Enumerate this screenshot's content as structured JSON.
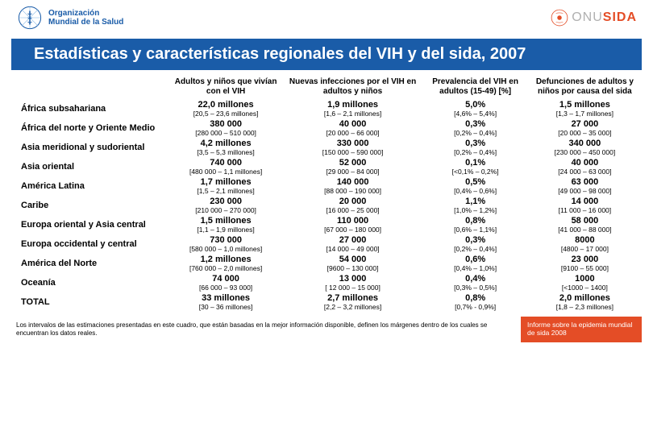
{
  "header": {
    "who_line1": "Organización",
    "who_line2": "Mundial de la Salud",
    "unaids_prefix": "ONU",
    "unaids_suffix": "SIDA"
  },
  "title": "Estadísticas y características regionales del VIH y del sida, 2007",
  "columns": [
    "Adultos y niños que vivían con el VIH",
    "Nuevas infecciones por el VIH en adultos y niños",
    "Prevalencia del VIH en adultos (15-49) [%]",
    "Defunciones de adultos y niños por causa del sida"
  ],
  "rows": [
    {
      "region": "África subsahariana",
      "c1": {
        "v": "22,0 millones",
        "r": "[20,5 – 23,6 millones]"
      },
      "c2": {
        "v": "1,9 millones",
        "r": "[1,6 – 2,1 millones]"
      },
      "c3": {
        "v": "5,0%",
        "r": "[4,6% – 5,4%]"
      },
      "c4": {
        "v": "1,5 millones",
        "r": "[1,3 – 1,7 millones]"
      }
    },
    {
      "region": "África del norte y Oriente Medio",
      "c1": {
        "v": "380 000",
        "r": "[280 000 – 510 000]"
      },
      "c2": {
        "v": "40 000",
        "r": "[20 000 – 66 000]"
      },
      "c3": {
        "v": "0,3%",
        "r": "[0,2% – 0,4%]"
      },
      "c4": {
        "v": "27 000",
        "r": "[20 000 – 35 000]"
      }
    },
    {
      "region": "Asia meridional y sudoriental",
      "c1": {
        "v": "4,2 millones",
        "r": "[3,5 – 5,3 millones]"
      },
      "c2": {
        "v": "330 000",
        "r": "[150 000 – 590 000]"
      },
      "c3": {
        "v": "0,3%",
        "r": "[0,2% – 0,4%]"
      },
      "c4": {
        "v": "340 000",
        "r": "[230 000 – 450 000]"
      }
    },
    {
      "region": "Asia oriental",
      "c1": {
        "v": "740 000",
        "r": "[480 000 – 1,1 millones]"
      },
      "c2": {
        "v": "52 000",
        "r": "[29 000 – 84 000]"
      },
      "c3": {
        "v": "0,1%",
        "r": "[<0,1% – 0,2%]"
      },
      "c4": {
        "v": "40 000",
        "r": "[24 000 – 63 000]"
      }
    },
    {
      "region": "América Latina",
      "c1": {
        "v": "1,7 millones",
        "r": "[1,5 – 2,1 millones]"
      },
      "c2": {
        "v": "140 000",
        "r": "[88 000 – 190 000]"
      },
      "c3": {
        "v": "0,5%",
        "r": "[0,4% – 0,6%]"
      },
      "c4": {
        "v": "63 000",
        "r": "[49 000 – 98 000]"
      }
    },
    {
      "region": "Caribe",
      "c1": {
        "v": "230 000",
        "r": "[210 000 – 270 000]"
      },
      "c2": {
        "v": "20 000",
        "r": "[16 000 – 25 000]"
      },
      "c3": {
        "v": "1,1%",
        "r": "[1,0% – 1,2%]"
      },
      "c4": {
        "v": "14 000",
        "r": "[11 000 – 16 000]"
      }
    },
    {
      "region": "Europa oriental y Asia central",
      "c1": {
        "v": "1,5 millones",
        "r": "[1,1 – 1,9 millones]"
      },
      "c2": {
        "v": "110 000",
        "r": "[67 000 – 180 000]"
      },
      "c3": {
        "v": "0,8%",
        "r": "[0,6% – 1,1%]"
      },
      "c4": {
        "v": "58 000",
        "r": "[41 000 – 88 000]"
      }
    },
    {
      "region": "Europa occidental y central",
      "c1": {
        "v": "730 000",
        "r": "[580 000 – 1,0 millones]"
      },
      "c2": {
        "v": "27 000",
        "r": "[14 000 – 49 000]"
      },
      "c3": {
        "v": "0,3%",
        "r": "[0,2% – 0,4%]"
      },
      "c4": {
        "v": "8000",
        "r": "[4800 – 17 000]"
      }
    },
    {
      "region": "América del Norte",
      "c1": {
        "v": "1,2 millones",
        "r": "[760 000 – 2,0 millones]"
      },
      "c2": {
        "v": "54 000",
        "r": "[9600 – 130 000]"
      },
      "c3": {
        "v": "0,6%",
        "r": "[0,4% – 1,0%]"
      },
      "c4": {
        "v": "23 000",
        "r": "[9100 – 55 000]"
      }
    },
    {
      "region": "Oceanía",
      "c1": {
        "v": "74 000",
        "r": "[66 000 – 93 000]"
      },
      "c2": {
        "v": "13 000",
        "r": "[ 12 000 – 15 000]"
      },
      "c3": {
        "v": "0,4%",
        "r": "[0,3% – 0,5%]"
      },
      "c4": {
        "v": "1000",
        "r": "[<1000 – 1400]"
      }
    },
    {
      "region": "TOTAL",
      "c1": {
        "v": "33 millones",
        "r": "[30 – 36 millones]"
      },
      "c2": {
        "v": "2,7 millones",
        "r": "[2,2 – 3,2 millones]"
      },
      "c3": {
        "v": "0,8%",
        "r": "[0,7% - 0,9%]"
      },
      "c4": {
        "v": "2,0 millones",
        "r": "[1,8 – 2,3 millones]"
      }
    }
  ],
  "footnote": "Los intervalos de las estimaciones presentadas en este cuadro, que están basadas en la mejor información disponible, definen los márgenes dentro de los cuales se encuentran los datos reales.",
  "report_box": "Informe sobre la epidemia mundial de sida 2008"
}
